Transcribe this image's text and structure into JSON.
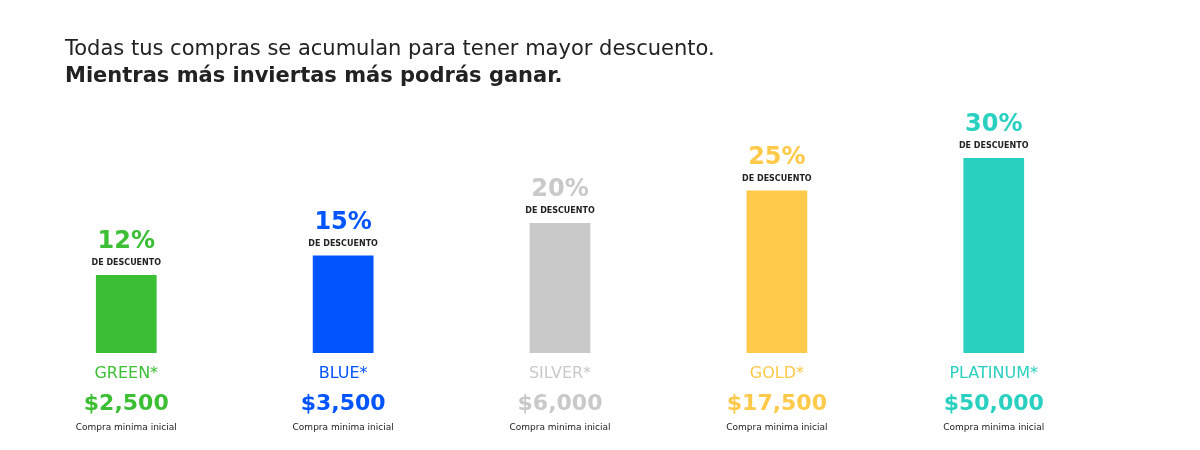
{
  "chart_data": {
    "type": "bar",
    "title": "Todas tus compras se acumulan para tener mayor descuento.",
    "subtitle": "Mientras más inviertas más podrás ganar.",
    "categories": [
      "GREEN*",
      "BLUE*",
      "SILVER*",
      "GOLD*",
      "PLATINUM*"
    ],
    "values": [
      12,
      15,
      20,
      25,
      30
    ],
    "value_labels": [
      "12%",
      "15%",
      "20%",
      "25%",
      "30%"
    ],
    "colors": [
      "#3dbf35",
      "#0055ff",
      "#c9c9c9",
      "#ffc94a",
      "#2ad0bf"
    ],
    "annotations": [
      {
        "text": "DE DESCUENTO",
        "x": "GREEN*",
        "y": 12
      },
      {
        "text": "DE DESCUENTO",
        "x": "BLUE*",
        "y": 15
      },
      {
        "text": "DE DESCUENTO",
        "x": "SILVER*",
        "y": 20
      },
      {
        "text": "DE DESCUENTO",
        "x": "GOLD*",
        "y": 25
      },
      {
        "text": "DE DESCUENTO",
        "x": "PLATINUM*",
        "y": 30
      },
      "$2,500",
      "$3,500",
      "$6,000",
      "$17,500",
      "$50,000",
      "Compra minima inicial",
      "Compra minima inicial",
      "Compra minima inicial",
      "Compra minima inicial",
      "Compra minima inicial"
    ]
  }
}
